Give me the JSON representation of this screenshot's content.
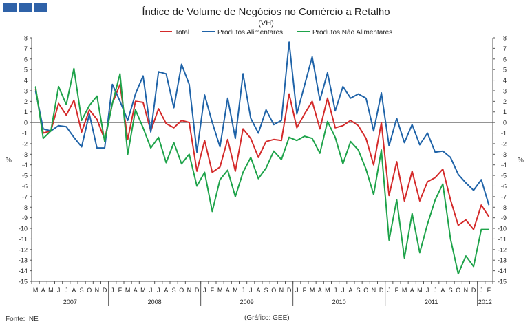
{
  "header": {
    "title": "Índice de Volume de Negócios no Comércio a Retalho",
    "subtitle": "(VH)"
  },
  "footer": {
    "source": "Fonte:  INE",
    "credit": "(Gráfico:  GEE)"
  },
  "colors": {
    "total": "#d42a2a",
    "alimentares": "#1f63a8",
    "nao_alimentares": "#1ea34a",
    "logo": "#2f62a8"
  },
  "chart_data": {
    "type": "line",
    "title": "Índice de Volume de Negócios no Comércio a Retalho",
    "subtitle": "(VH)",
    "ylabel_left": "%",
    "ylabel_right": "%",
    "ylim": [
      -15,
      8
    ],
    "yticks": [
      8,
      7,
      6,
      5,
      4,
      3,
      2,
      1,
      0,
      -1,
      -2,
      -3,
      -4,
      -5,
      -6,
      -7,
      -8,
      -9,
      -10,
      -11,
      -12,
      -13,
      -14,
      -15
    ],
    "legend_position": "top-center",
    "month_labels": [
      "M",
      "A",
      "M",
      "J",
      "J",
      "A",
      "S",
      "O",
      "N",
      "D",
      "J",
      "F",
      "M",
      "A",
      "M",
      "J",
      "J",
      "A",
      "S",
      "O",
      "N",
      "D",
      "J",
      "F",
      "M",
      "A",
      "M",
      "J",
      "J",
      "A",
      "S",
      "O",
      "N",
      "D",
      "J",
      "F",
      "M",
      "A",
      "M",
      "J",
      "J",
      "A",
      "S",
      "O",
      "N",
      "D",
      "J",
      "F",
      "M",
      "A",
      "M",
      "J",
      "J",
      "A",
      "S",
      "O",
      "N",
      "D",
      "J",
      "F"
    ],
    "years": [
      {
        "label": "2007",
        "start": 0,
        "end": 9
      },
      {
        "label": "2008",
        "start": 10,
        "end": 21
      },
      {
        "label": "2009",
        "start": 22,
        "end": 33
      },
      {
        "label": "2010",
        "start": 34,
        "end": 45
      },
      {
        "label": "2011",
        "start": 46,
        "end": 57
      },
      {
        "label": "2012",
        "start": 58,
        "end": 59
      }
    ],
    "series": [
      {
        "name": "Total",
        "values": [
          3.2,
          -1.0,
          -0.8,
          1.8,
          0.7,
          2.1,
          -0.9,
          1.2,
          0.3,
          -1.6,
          1.8,
          3.6,
          -1.6,
          2.0,
          1.9,
          -0.8,
          1.3,
          -0.1,
          -0.5,
          0.2,
          0.0,
          -4.6,
          -1.7,
          -4.7,
          -4.2,
          -1.6,
          -4.6,
          -0.6,
          -1.5,
          -3.3,
          -1.8,
          -1.6,
          -1.7,
          2.7,
          -0.5,
          0.8,
          2.0,
          -0.6,
          2.3,
          -0.5,
          -0.3,
          0.2,
          -0.3,
          -1.5,
          -4.0,
          0.0,
          -6.9,
          -3.7,
          -7.4,
          -4.6,
          -7.4,
          -5.6,
          -5.2,
          -4.4,
          -7.3,
          -9.7,
          -9.2,
          -10.1,
          -7.8,
          -8.9
        ]
      },
      {
        "name": "Produtos Alimentares",
        "values": [
          3.0,
          -0.6,
          -0.8,
          -0.3,
          -0.4,
          -1.4,
          -2.3,
          0.8,
          -2.4,
          -2.4,
          3.6,
          2.0,
          0.2,
          2.7,
          4.4,
          -0.9,
          4.8,
          4.6,
          1.4,
          5.5,
          3.6,
          -2.8,
          2.6,
          0.0,
          -2.3,
          2.3,
          -1.5,
          4.6,
          0.4,
          -1.0,
          1.2,
          -0.2,
          0.2,
          7.6,
          0.8,
          3.5,
          6.2,
          2.1,
          4.7,
          1.1,
          3.4,
          2.3,
          2.7,
          2.3,
          -0.8,
          2.8,
          -2.2,
          0.4,
          -1.9,
          -0.2,
          -2.1,
          -1.0,
          -2.8,
          -2.7,
          -3.3,
          -4.9,
          -5.7,
          -6.4,
          -5.4,
          -7.8
        ]
      },
      {
        "name": "Produtos Não Alimentares",
        "values": [
          3.4,
          -1.5,
          -0.8,
          3.4,
          1.7,
          5.1,
          0.2,
          1.6,
          2.5,
          -1.8,
          1.8,
          4.6,
          -3.0,
          1.2,
          -0.5,
          -2.4,
          -1.4,
          -3.8,
          -1.9,
          -3.9,
          -3.0,
          -6.0,
          -4.7,
          -8.4,
          -5.4,
          -4.5,
          -7.0,
          -4.7,
          -3.3,
          -5.3,
          -4.3,
          -2.7,
          -3.5,
          -1.4,
          -1.7,
          -1.3,
          -1.5,
          -2.9,
          0.1,
          -1.4,
          -3.9,
          -1.8,
          -2.6,
          -4.4,
          -6.8,
          -2.6,
          -11.1,
          -7.3,
          -12.8,
          -8.6,
          -12.3,
          -9.6,
          -7.3,
          -5.8,
          -11.0,
          -14.3,
          -12.6,
          -13.6,
          -10.1,
          -10.1
        ]
      }
    ]
  }
}
